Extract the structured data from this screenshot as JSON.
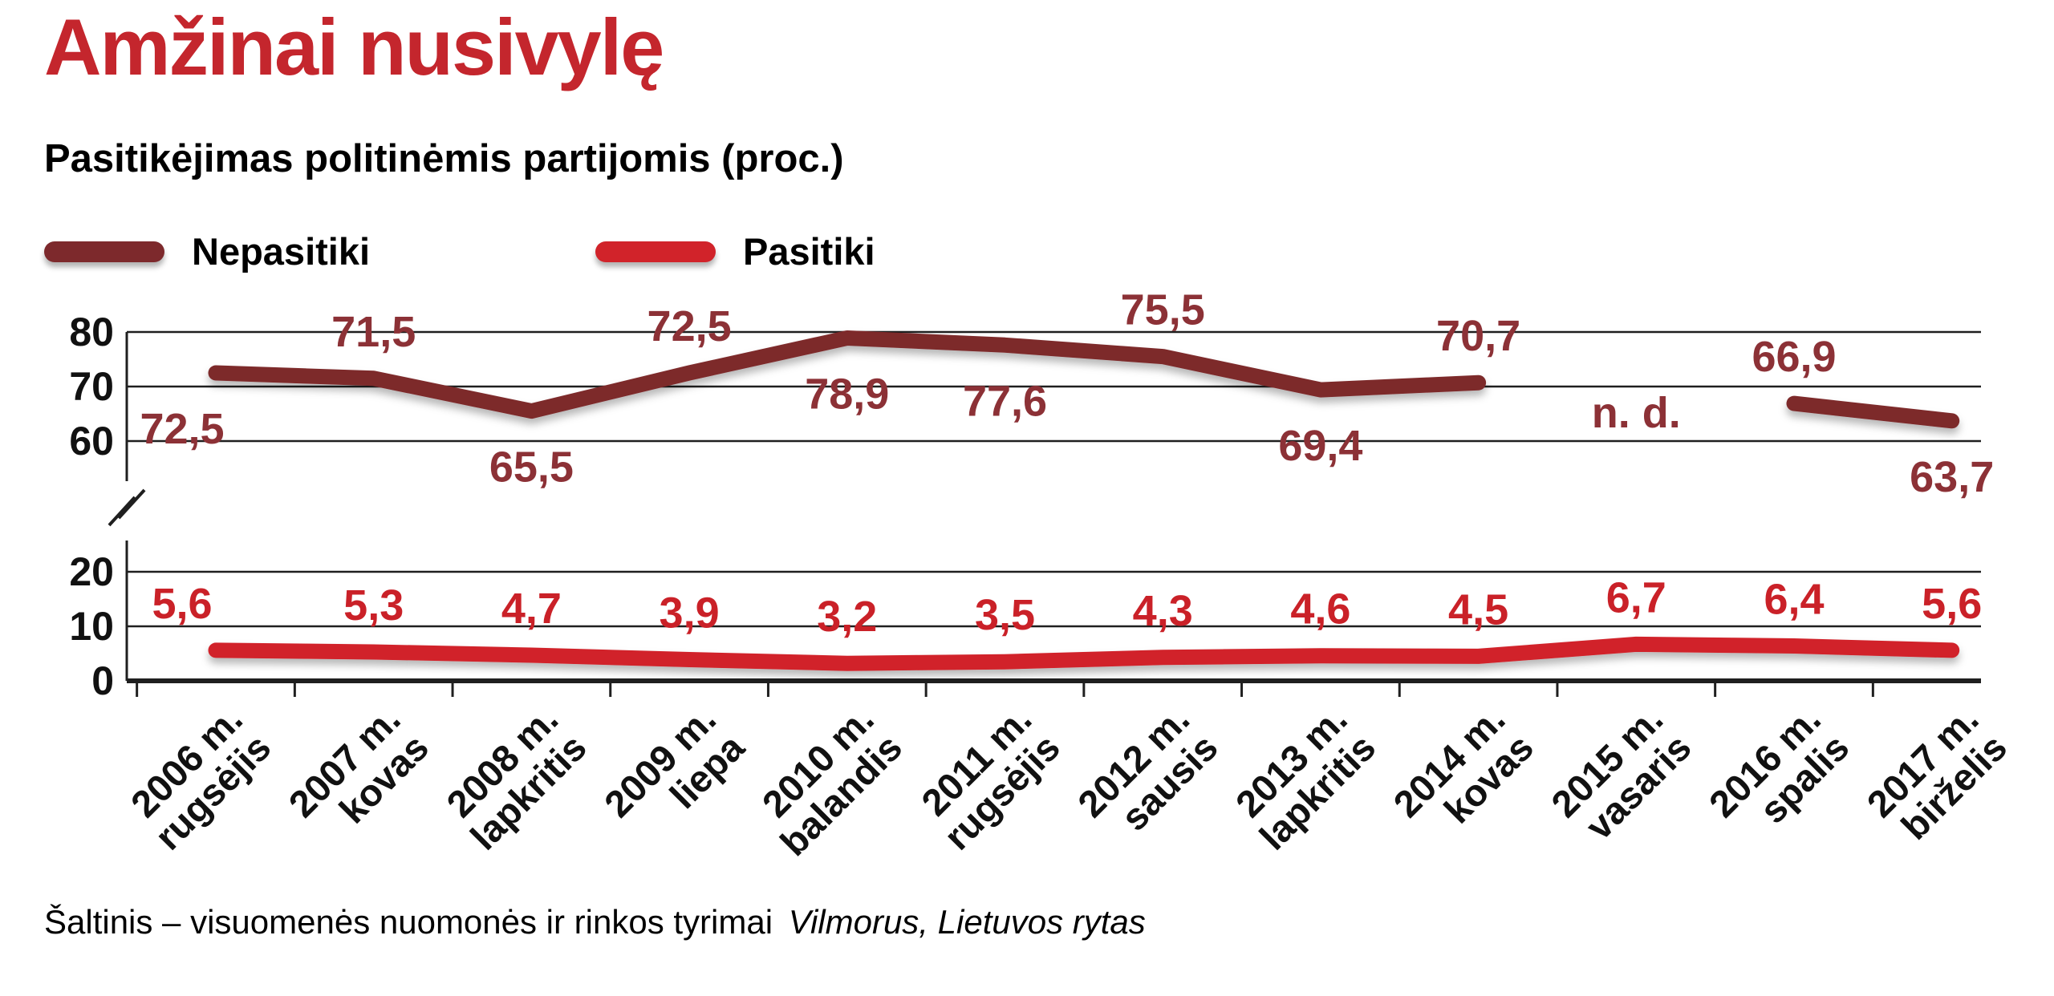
{
  "colors": {
    "title": "#c4262d",
    "axis": "#1f1f1f",
    "text": "#111111"
  },
  "source": {
    "prefix": "Šaltinis – visuomenės nuomonės ir rinkos tyrimai",
    "italic": "Vilmorus, Lietuvos rytas"
  },
  "chart_data": {
    "type": "line",
    "title": "Amžinai nusivylę",
    "subtitle": "Pasitikėjimas politinėmis partijomis (proc.)",
    "legend_position": "top-left",
    "grid": "horizontal",
    "ylim": [
      0,
      80
    ],
    "y_ticks": [
      80,
      70,
      60,
      20,
      10,
      0
    ],
    "axis_break": {
      "between": [
        20,
        60
      ]
    },
    "categories": [
      {
        "year": "2006 m.",
        "month": "rugsėjis"
      },
      {
        "year": "2007 m.",
        "month": "kovas"
      },
      {
        "year": "2008 m.",
        "month": "lapkritis"
      },
      {
        "year": "2009 m.",
        "month": "liepa"
      },
      {
        "year": "2010 m.",
        "month": "balandis"
      },
      {
        "year": "2011 m.",
        "month": "rugsėjis"
      },
      {
        "year": "2012 m.",
        "month": "sausis"
      },
      {
        "year": "2013 m.",
        "month": "lapkritis"
      },
      {
        "year": "2014 m.",
        "month": "kovas"
      },
      {
        "year": "2015 m.",
        "month": "vasaris"
      },
      {
        "year": "2016 m.",
        "month": "spalis"
      },
      {
        "year": "2017 m.",
        "month": "birželis"
      }
    ],
    "series": [
      {
        "name": "Nepasitiki",
        "color": "#7d292c",
        "label_color": "#8c3136",
        "values": [
          72.5,
          71.5,
          65.5,
          72.5,
          78.9,
          77.6,
          75.5,
          69.4,
          70.7,
          null,
          66.9,
          63.7
        ],
        "labels": [
          "72,5",
          "71,5",
          "65,5",
          "72,5",
          "78,9",
          "77,6",
          "75,5",
          "69,4",
          "70,7",
          "n. d.",
          "66,9",
          "63,7"
        ],
        "label_side": [
          "below",
          "above",
          "below",
          "above",
          "below",
          "below",
          "above",
          "below",
          "above",
          "middle",
          "above",
          "below"
        ]
      },
      {
        "name": "Pasitiki",
        "color": "#d1232a",
        "label_color": "#ca2128",
        "values": [
          5.6,
          5.3,
          4.7,
          3.9,
          3.2,
          3.5,
          4.3,
          4.6,
          4.5,
          6.7,
          6.4,
          5.6
        ],
        "labels": [
          "5,6",
          "5,3",
          "4,7",
          "3,9",
          "3,2",
          "3,5",
          "4,3",
          "4,6",
          "4,5",
          "6,7",
          "6,4",
          "5,6"
        ],
        "label_side": [
          "above",
          "above",
          "above",
          "above",
          "above",
          "above",
          "above",
          "above",
          "above",
          "above",
          "above",
          "above"
        ]
      }
    ]
  }
}
